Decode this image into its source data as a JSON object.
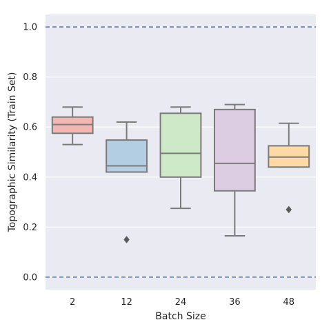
{
  "chart_data": {
    "type": "box",
    "title": "",
    "xlabel": "Batch Size",
    "ylabel": "Topographic Similarity (Train Set)",
    "ylim": [
      -0.05,
      1.05
    ],
    "yticks": [
      "0.0",
      "0.2",
      "0.4",
      "0.6",
      "0.8",
      "1.0"
    ],
    "categories": [
      "2",
      "12",
      "24",
      "36",
      "48"
    ],
    "boxes": [
      {
        "category": "2",
        "whisker_low": 0.53,
        "q1": 0.575,
        "median": 0.61,
        "q3": 0.64,
        "whisker_high": 0.68,
        "outliers": [],
        "color": "#f4b6b3"
      },
      {
        "category": "12",
        "whisker_low": 0.42,
        "q1": 0.42,
        "median": 0.445,
        "q3": 0.548,
        "whisker_high": 0.62,
        "outliers": [
          0.15
        ],
        "color": "#b3cde3"
      },
      {
        "category": "24",
        "whisker_low": 0.275,
        "q1": 0.4,
        "median": 0.495,
        "q3": 0.655,
        "whisker_high": 0.68,
        "outliers": [],
        "color": "#cde9c7"
      },
      {
        "category": "36",
        "whisker_low": 0.165,
        "q1": 0.345,
        "median": 0.455,
        "q3": 0.67,
        "whisker_high": 0.69,
        "outliers": [],
        "color": "#dccde3"
      },
      {
        "category": "48",
        "whisker_low": 0.44,
        "q1": 0.44,
        "median": 0.48,
        "q3": 0.525,
        "whisker_high": 0.615,
        "outliers": [
          0.27
        ],
        "color": "#fdd9a6"
      }
    ],
    "reference_lines": [
      0.0,
      1.0
    ],
    "reference_line_color": "#4c72b0",
    "background_color": "#eaeaf2",
    "grid": true,
    "box_edge_color": "#7a7a7a"
  }
}
